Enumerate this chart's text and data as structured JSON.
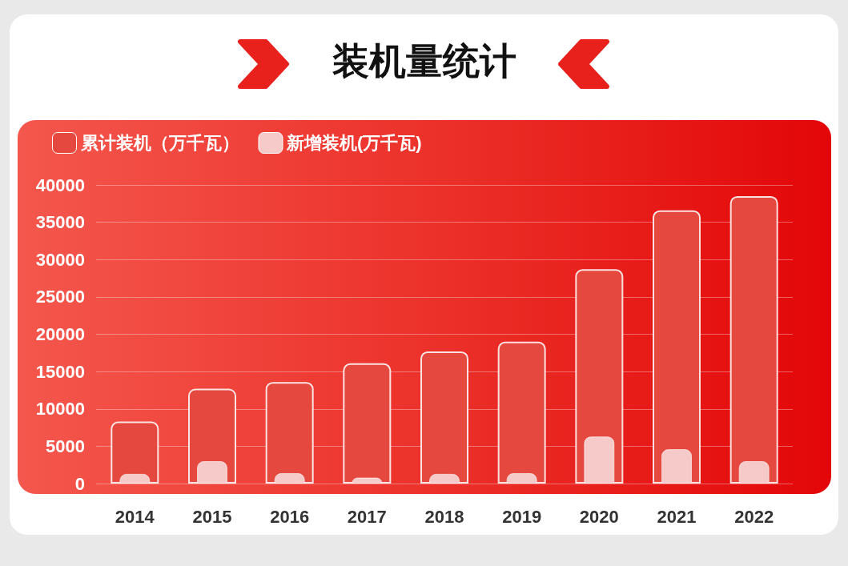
{
  "chart_data": {
    "type": "bar",
    "title": "装机量统计",
    "categories": [
      "2014",
      "2015",
      "2016",
      "2017",
      "2018",
      "2019",
      "2020",
      "2021",
      "2022"
    ],
    "series": [
      {
        "name": "累计装机（万千瓦）",
        "color": "#e5483f",
        "values": [
          8300,
          12700,
          13600,
          16100,
          17700,
          19000,
          28700,
          36600,
          38500
        ]
      },
      {
        "name": "新增装机(万千瓦)",
        "color": "#f7caca",
        "values": [
          1300,
          3000,
          1400,
          800,
          1300,
          1400,
          6300,
          4600,
          3000
        ]
      }
    ],
    "ylim": [
      0,
      40000
    ],
    "yticks": [
      0,
      5000,
      10000,
      15000,
      20000,
      25000,
      30000,
      35000,
      40000
    ],
    "grid": "y",
    "legend": "top left"
  }
}
